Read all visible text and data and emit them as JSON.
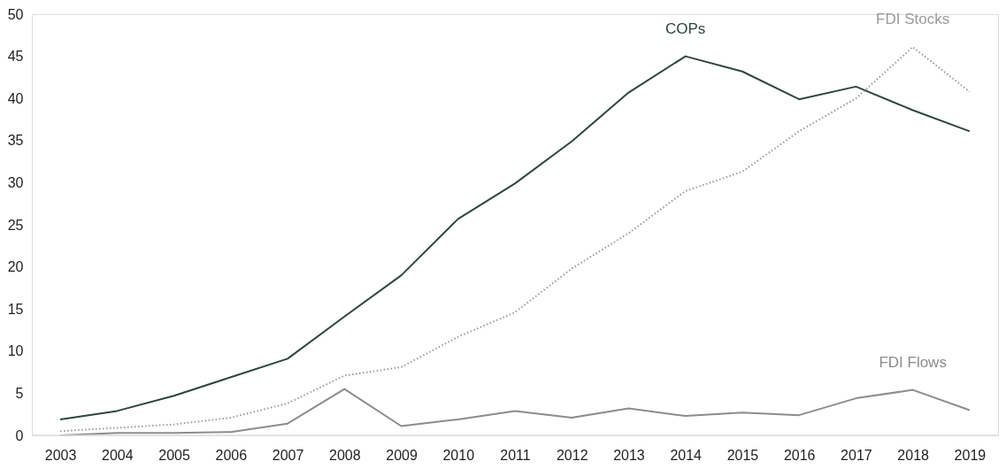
{
  "chart_data": {
    "type": "line",
    "categories": [
      "2003",
      "2004",
      "2005",
      "2006",
      "2007",
      "2008",
      "2009",
      "2010",
      "2011",
      "2012",
      "2013",
      "2014",
      "2015",
      "2016",
      "2017",
      "2018",
      "2019"
    ],
    "series": [
      {
        "name": "COPs",
        "color": "#2f4540",
        "line_style": "solid",
        "values": [
          1.9,
          2.9,
          4.7,
          6.9,
          9.1,
          14.1,
          19.0,
          25.7,
          29.9,
          34.9,
          40.7,
          45.0,
          43.2,
          39.9,
          41.4,
          38.6,
          36.1
        ]
      },
      {
        "name": "FDI Stocks",
        "color": "#9a9a9a",
        "line_style": "dotted",
        "values": [
          0.5,
          0.9,
          1.3,
          2.1,
          3.8,
          7.1,
          8.1,
          11.7,
          14.6,
          19.8,
          24.0,
          29.0,
          31.3,
          36.1,
          40.0,
          46.1,
          40.8
        ]
      },
      {
        "name": "FDI Flows",
        "color": "#8c8c8c",
        "line_style": "solid",
        "values": [
          0.0,
          0.3,
          0.3,
          0.4,
          1.4,
          5.5,
          1.1,
          1.9,
          2.9,
          2.1,
          3.2,
          2.3,
          2.7,
          2.4,
          4.4,
          5.4,
          3.0
        ]
      }
    ],
    "ylim": [
      0,
      50
    ],
    "yticks": [
      0,
      5,
      10,
      15,
      20,
      25,
      30,
      35,
      40,
      45,
      50
    ],
    "grid": false,
    "marker": "none"
  }
}
